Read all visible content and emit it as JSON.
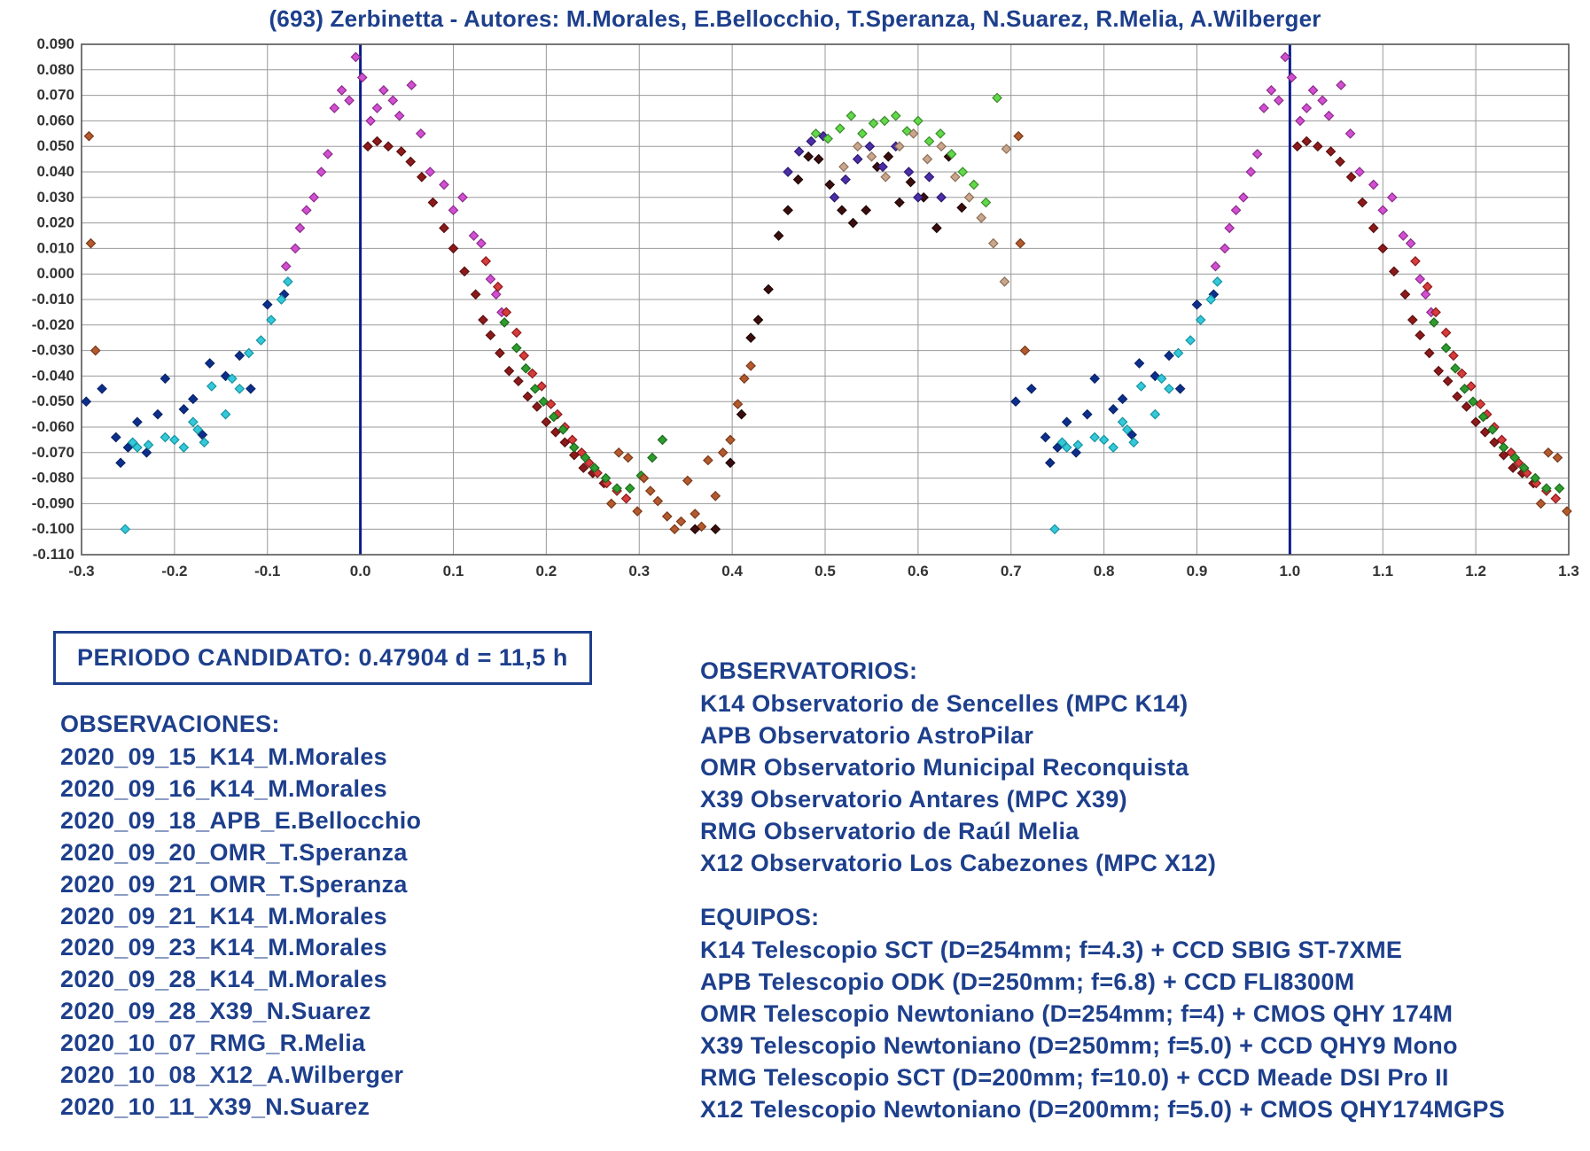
{
  "title": "(693) Zerbinetta - Autores: M.Morales, E.Bellocchio, T.Speranza, N.Suarez, R.Melia, A.Wilberger",
  "period_box": "PERIODO CANDIDATO: 0.47904 d = 11,5 h",
  "observations_header": "OBSERVACIONES:",
  "observations": [
    "2020_09_15_K14_M.Morales",
    "2020_09_16_K14_M.Morales",
    "2020_09_18_APB_E.Bellocchio",
    "2020_09_20_OMR_T.Speranza",
    "2020_09_21_OMR_T.Speranza",
    "2020_09_21_K14_M.Morales",
    "2020_09_23_K14_M.Morales",
    "2020_09_28_K14_M.Morales",
    "2020_09_28_X39_N.Suarez",
    "2020_10_07_RMG_R.Melia",
    "2020_10_08_X12_A.Wilberger",
    "2020_10_11_X39_N.Suarez"
  ],
  "observatories_header": "OBSERVATORIOS:",
  "observatories": [
    "K14 Observatorio de Sencelles (MPC K14)",
    "APB Observatorio AstroPilar",
    "OMR Observatorio Municipal Reconquista",
    "X39 Observatorio Antares (MPC X39)",
    "RMG Observatorio de Raúl Melia",
    "X12 Observatorio Los Cabezones (MPC X12)"
  ],
  "equipment_header": "EQUIPOS:",
  "equipment": [
    "K14 Telescopio SCT (D=254mm; f=4.3) + CCD SBIG ST-7XME",
    "APB Telescopio ODK (D=250mm; f=6.8) + CCD FLI8300M",
    "OMR Telescopio Newtoniano (D=254mm; f=4) + CMOS QHY 174M",
    "X39 Telescopio Newtoniano (D=250mm; f=5.0) + CCD QHY9 Mono",
    "RMG Telescopio SCT (D=200mm; f=10.0) + CCD Meade DSI Pro II",
    "X12 Telescopio Newtoniano (D=200mm; f=5.0) + CMOS QHY174MGPS"
  ],
  "chart": {
    "type": "scatter",
    "background_color": "#ffffff",
    "grid_color": "#999999",
    "border_color": "#555555",
    "bold_vline_color": "#0b1c8a",
    "tick_font_size": 17,
    "tick_color": "#333333",
    "title_color": "#1d3f8c",
    "title_fontsize": 26,
    "marker_size": 6,
    "marker_shape": "diamond",
    "xlim": [
      -0.3,
      1.3
    ],
    "ylim": [
      0.09,
      -0.11
    ],
    "xtick_step": 0.1,
    "ytick_step": 0.01,
    "xticks": [
      "-0.3",
      "-0.2",
      "-0.1",
      "0.0",
      "0.1",
      "0.2",
      "0.3",
      "0.4",
      "0.5",
      "0.6",
      "0.7",
      "0.8",
      "0.9",
      "1.0",
      "1.1",
      "1.2",
      "1.3"
    ],
    "yticks": [
      "-0.110",
      "-0.100",
      "-0.090",
      "-0.080",
      "-0.070",
      "-0.060",
      "-0.050",
      "-0.040",
      "-0.030",
      "-0.020",
      "-0.010",
      "0.000",
      "0.010",
      "0.020",
      "0.030",
      "0.040",
      "0.050",
      "0.060",
      "0.070",
      "0.080",
      "0.090"
    ],
    "bold_vlines_x": [
      0.0,
      1.0
    ],
    "series_base": [
      {
        "name": "s1_navy",
        "color": "#0d2f8c",
        "stroke": "#0a2468",
        "points": [
          [
            -0.295,
            -0.05
          ],
          [
            -0.278,
            -0.045
          ],
          [
            -0.263,
            -0.064
          ],
          [
            -0.258,
            -0.074
          ],
          [
            -0.25,
            -0.068
          ],
          [
            -0.24,
            -0.058
          ],
          [
            -0.23,
            -0.07
          ],
          [
            -0.218,
            -0.055
          ],
          [
            -0.21,
            -0.041
          ],
          [
            -0.19,
            -0.053
          ],
          [
            -0.18,
            -0.049
          ],
          [
            -0.17,
            -0.063
          ],
          [
            -0.162,
            -0.035
          ],
          [
            -0.145,
            -0.04
          ],
          [
            -0.13,
            -0.032
          ],
          [
            -0.118,
            -0.045
          ],
          [
            -0.1,
            -0.012
          ],
          [
            -0.082,
            -0.008
          ]
        ]
      },
      {
        "name": "s2_cyan",
        "color": "#34c9d9",
        "stroke": "#1793a3",
        "points": [
          [
            -0.253,
            -0.1
          ],
          [
            -0.245,
            -0.066
          ],
          [
            -0.24,
            -0.068
          ],
          [
            -0.228,
            -0.067
          ],
          [
            -0.21,
            -0.064
          ],
          [
            -0.2,
            -0.065
          ],
          [
            -0.19,
            -0.068
          ],
          [
            -0.18,
            -0.058
          ],
          [
            -0.175,
            -0.061
          ],
          [
            -0.168,
            -0.066
          ],
          [
            -0.16,
            -0.044
          ],
          [
            -0.145,
            -0.055
          ],
          [
            -0.138,
            -0.041
          ],
          [
            -0.13,
            -0.045
          ],
          [
            -0.12,
            -0.031
          ],
          [
            -0.107,
            -0.026
          ],
          [
            -0.096,
            -0.018
          ],
          [
            -0.085,
            -0.01
          ],
          [
            -0.078,
            -0.003
          ]
        ]
      },
      {
        "name": "s3_magenta",
        "color": "#d24fd2",
        "stroke": "#8a2d8a",
        "points": [
          [
            -0.08,
            0.003
          ],
          [
            -0.07,
            0.01
          ],
          [
            -0.065,
            0.018
          ],
          [
            -0.058,
            0.025
          ],
          [
            -0.05,
            0.03
          ],
          [
            -0.042,
            0.04
          ],
          [
            -0.035,
            0.047
          ],
          [
            -0.028,
            0.065
          ],
          [
            -0.02,
            0.072
          ],
          [
            -0.012,
            0.068
          ],
          [
            -0.005,
            0.085
          ],
          [
            0.002,
            0.077
          ],
          [
            0.011,
            0.06
          ],
          [
            0.018,
            0.065
          ],
          [
            0.025,
            0.072
          ],
          [
            0.035,
            0.068
          ],
          [
            0.042,
            0.062
          ],
          [
            0.055,
            0.074
          ],
          [
            0.065,
            0.055
          ],
          [
            0.075,
            0.04
          ],
          [
            0.09,
            0.035
          ],
          [
            0.1,
            0.025
          ],
          [
            0.11,
            0.03
          ],
          [
            0.122,
            0.015
          ],
          [
            0.13,
            0.012
          ],
          [
            0.14,
            -0.002
          ],
          [
            0.146,
            -0.008
          ],
          [
            0.152,
            -0.015
          ]
        ]
      },
      {
        "name": "s4_darkred",
        "color": "#8c1a1a",
        "stroke": "#5a1010",
        "points": [
          [
            0.008,
            0.05
          ],
          [
            0.018,
            0.052
          ],
          [
            0.03,
            0.05
          ],
          [
            0.044,
            0.048
          ],
          [
            0.054,
            0.044
          ],
          [
            0.066,
            0.038
          ],
          [
            0.078,
            0.028
          ],
          [
            0.09,
            0.018
          ],
          [
            0.1,
            0.01
          ],
          [
            0.112,
            0.001
          ],
          [
            0.124,
            -0.008
          ],
          [
            0.132,
            -0.018
          ],
          [
            0.14,
            -0.024
          ],
          [
            0.15,
            -0.031
          ],
          [
            0.16,
            -0.038
          ],
          [
            0.17,
            -0.042
          ],
          [
            0.18,
            -0.048
          ],
          [
            0.19,
            -0.052
          ],
          [
            0.2,
            -0.058
          ],
          [
            0.21,
            -0.062
          ],
          [
            0.22,
            -0.066
          ],
          [
            0.23,
            -0.071
          ],
          [
            0.24,
            -0.076
          ],
          [
            0.25,
            -0.078
          ],
          [
            0.262,
            -0.082
          ]
        ]
      },
      {
        "name": "s5_red",
        "color": "#d63c3c",
        "stroke": "#8c1a1a",
        "points": [
          [
            0.135,
            0.005
          ],
          [
            0.148,
            -0.005
          ],
          [
            0.157,
            -0.015
          ],
          [
            0.168,
            -0.023
          ],
          [
            0.176,
            -0.032
          ],
          [
            0.185,
            -0.039
          ],
          [
            0.195,
            -0.044
          ],
          [
            0.205,
            -0.051
          ],
          [
            0.212,
            -0.055
          ],
          [
            0.22,
            -0.06
          ],
          [
            0.228,
            -0.065
          ],
          [
            0.238,
            -0.07
          ],
          [
            0.246,
            -0.074
          ],
          [
            0.255,
            -0.078
          ],
          [
            0.265,
            -0.082
          ],
          [
            0.276,
            -0.085
          ],
          [
            0.286,
            -0.088
          ]
        ]
      },
      {
        "name": "s6_green",
        "color": "#2e9c2e",
        "stroke": "#1d6a1d",
        "points": [
          [
            0.155,
            -0.019
          ],
          [
            0.168,
            -0.029
          ],
          [
            0.178,
            -0.037
          ],
          [
            0.188,
            -0.045
          ],
          [
            0.197,
            -0.05
          ],
          [
            0.208,
            -0.056
          ],
          [
            0.218,
            -0.061
          ],
          [
            0.23,
            -0.068
          ],
          [
            0.242,
            -0.072
          ],
          [
            0.252,
            -0.076
          ],
          [
            0.264,
            -0.08
          ],
          [
            0.276,
            -0.084
          ],
          [
            0.29,
            -0.084
          ],
          [
            0.302,
            -0.079
          ],
          [
            0.314,
            -0.072
          ],
          [
            0.325,
            -0.065
          ]
        ]
      },
      {
        "name": "s7_brown",
        "color": "#b35a2e",
        "stroke": "#7a3a1a",
        "points": [
          [
            -0.285,
            -0.03
          ],
          [
            -0.29,
            0.012
          ],
          [
            -0.292,
            0.054
          ],
          [
            0.27,
            -0.09
          ],
          [
            0.278,
            -0.07
          ],
          [
            0.288,
            -0.072
          ],
          [
            0.298,
            -0.093
          ],
          [
            0.305,
            -0.08
          ],
          [
            0.312,
            -0.085
          ],
          [
            0.32,
            -0.089
          ],
          [
            0.33,
            -0.095
          ],
          [
            0.338,
            -0.1
          ],
          [
            0.345,
            -0.097
          ],
          [
            0.352,
            -0.081
          ],
          [
            0.36,
            -0.094
          ],
          [
            0.367,
            -0.099
          ],
          [
            0.374,
            -0.073
          ],
          [
            0.382,
            -0.087
          ],
          [
            0.39,
            -0.07
          ],
          [
            0.398,
            -0.065
          ],
          [
            0.406,
            -0.051
          ],
          [
            0.413,
            -0.041
          ],
          [
            0.42,
            -0.036
          ]
        ]
      },
      {
        "name": "s8_maroon",
        "color": "#3b0e0e",
        "stroke": "#1e0606",
        "points": [
          [
            0.36,
            -0.1
          ],
          [
            0.382,
            -0.1
          ],
          [
            0.398,
            -0.074
          ],
          [
            0.41,
            -0.055
          ],
          [
            0.42,
            -0.025
          ],
          [
            0.428,
            -0.018
          ],
          [
            0.439,
            -0.006
          ],
          [
            0.45,
            0.015
          ],
          [
            0.46,
            0.025
          ],
          [
            0.471,
            0.037
          ],
          [
            0.482,
            0.046
          ],
          [
            0.493,
            0.045
          ],
          [
            0.505,
            0.035
          ],
          [
            0.518,
            0.025
          ],
          [
            0.53,
            0.02
          ],
          [
            0.544,
            0.025
          ],
          [
            0.556,
            0.042
          ],
          [
            0.568,
            0.046
          ],
          [
            0.58,
            0.028
          ],
          [
            0.592,
            0.036
          ],
          [
            0.606,
            0.03
          ],
          [
            0.62,
            0.018
          ],
          [
            0.633,
            0.046
          ],
          [
            0.647,
            0.026
          ]
        ]
      },
      {
        "name": "s9_indigo",
        "color": "#4b2ea8",
        "stroke": "#2c1a6f",
        "points": [
          [
            0.46,
            0.04
          ],
          [
            0.472,
            0.048
          ],
          [
            0.485,
            0.052
          ],
          [
            0.498,
            0.054
          ],
          [
            0.51,
            0.03
          ],
          [
            0.522,
            0.037
          ],
          [
            0.535,
            0.045
          ],
          [
            0.548,
            0.05
          ],
          [
            0.562,
            0.042
          ],
          [
            0.576,
            0.05
          ],
          [
            0.59,
            0.04
          ],
          [
            0.6,
            0.03
          ],
          [
            0.612,
            0.038
          ],
          [
            0.625,
            0.03
          ]
        ]
      },
      {
        "name": "s10_lime",
        "color": "#62d94a",
        "stroke": "#3c8c2c",
        "points": [
          [
            0.49,
            0.055
          ],
          [
            0.503,
            0.053
          ],
          [
            0.516,
            0.057
          ],
          [
            0.528,
            0.062
          ],
          [
            0.54,
            0.055
          ],
          [
            0.552,
            0.059
          ],
          [
            0.564,
            0.06
          ],
          [
            0.576,
            0.062
          ],
          [
            0.588,
            0.056
          ],
          [
            0.6,
            0.06
          ],
          [
            0.612,
            0.052
          ],
          [
            0.624,
            0.055
          ],
          [
            0.636,
            0.047
          ],
          [
            0.648,
            0.04
          ],
          [
            0.66,
            0.035
          ],
          [
            0.673,
            0.028
          ],
          [
            0.685,
            0.069
          ]
        ]
      },
      {
        "name": "s11_tan",
        "color": "#c9a68c",
        "stroke": "#8c6f58",
        "points": [
          [
            0.52,
            0.042
          ],
          [
            0.535,
            0.05
          ],
          [
            0.55,
            0.046
          ],
          [
            0.565,
            0.038
          ],
          [
            0.58,
            0.05
          ],
          [
            0.595,
            0.055
          ],
          [
            0.61,
            0.045
          ],
          [
            0.625,
            0.05
          ],
          [
            0.64,
            0.038
          ],
          [
            0.655,
            0.03
          ],
          [
            0.668,
            0.022
          ],
          [
            0.681,
            0.012
          ],
          [
            0.693,
            -0.003
          ],
          [
            0.695,
            0.049
          ]
        ]
      }
    ],
    "phase_shifts": [
      0,
      1
    ]
  }
}
